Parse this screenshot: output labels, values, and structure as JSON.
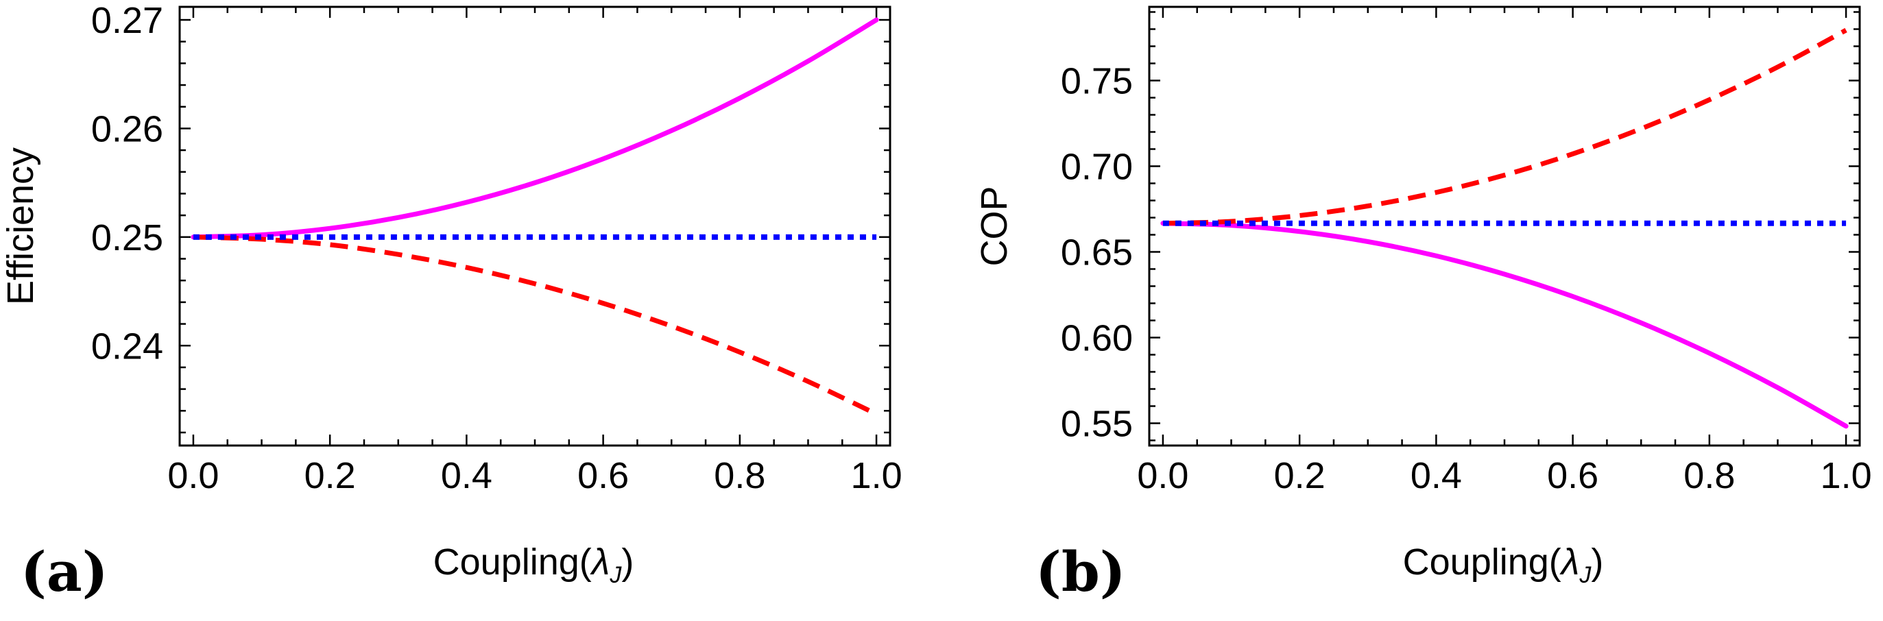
{
  "chart_data": [
    {
      "id": "a",
      "type": "line",
      "panel_label": "(a)",
      "xlabel_text": "Coupling(",
      "xlabel_symbol": "λ",
      "xlabel_subscript": "J",
      "xlabel_close": ")",
      "ylabel": "Efficiency",
      "xlim": [
        -0.02,
        1.02
      ],
      "ylim": [
        0.2308,
        0.2712
      ],
      "xticks": [
        0.0,
        0.2,
        0.4,
        0.6,
        0.8,
        1.0
      ],
      "xtick_labels": [
        "0.0",
        "0.2",
        "0.4",
        "0.6",
        "0.8",
        "1.0"
      ],
      "yticks": [
        0.24,
        0.25,
        0.26,
        0.27
      ],
      "ytick_labels": [
        "0.24",
        "0.25",
        "0.26",
        "0.27"
      ],
      "x": [
        0.0,
        0.1,
        0.2,
        0.3,
        0.4,
        0.5,
        0.6,
        0.7,
        0.8,
        0.9,
        1.0
      ],
      "series": [
        {
          "name": "solid",
          "color": "#ff00ff",
          "dash": "solid",
          "values": [
            0.25,
            0.2502,
            0.2508,
            0.2518,
            0.2532,
            0.255,
            0.2572,
            0.2598,
            0.2628,
            0.2662,
            0.27
          ]
        },
        {
          "name": "dashed",
          "color": "#ff0000",
          "dash": "dashed",
          "values": [
            0.25,
            0.2498,
            0.2493,
            0.2484,
            0.2472,
            0.2457,
            0.2439,
            0.2418,
            0.2394,
            0.2367,
            0.2337
          ]
        },
        {
          "name": "dotted",
          "color": "#0000ff",
          "dash": "dotted",
          "values": [
            0.25,
            0.25,
            0.25,
            0.25,
            0.25,
            0.25,
            0.25,
            0.25,
            0.25,
            0.25,
            0.25
          ]
        }
      ]
    },
    {
      "id": "b",
      "type": "line",
      "panel_label": "(b)",
      "xlabel_text": "Coupling(",
      "xlabel_symbol": "λ",
      "xlabel_subscript": "J",
      "xlabel_close": ")",
      "ylabel": "COP",
      "xlim": [
        -0.02,
        1.02
      ],
      "ylim": [
        0.537,
        0.793
      ],
      "xticks": [
        0.0,
        0.2,
        0.4,
        0.6,
        0.8,
        1.0
      ],
      "xtick_labels": [
        "0.0",
        "0.2",
        "0.4",
        "0.6",
        "0.8",
        "1.0"
      ],
      "yticks": [
        0.55,
        0.6,
        0.65,
        0.7,
        0.75
      ],
      "ytick_labels": [
        "0.55",
        "0.60",
        "0.65",
        "0.70",
        "0.75"
      ],
      "x": [
        0.0,
        0.1,
        0.2,
        0.3,
        0.4,
        0.5,
        0.6,
        0.7,
        0.8,
        0.9,
        1.0
      ],
      "series": [
        {
          "name": "solid",
          "color": "#ff00ff",
          "dash": "solid",
          "values": [
            0.6667,
            0.6655,
            0.6619,
            0.656,
            0.6477,
            0.637,
            0.624,
            0.6086,
            0.5909,
            0.5708,
            0.5483
          ]
        },
        {
          "name": "dashed",
          "color": "#ff0000",
          "dash": "dashed",
          "values": [
            0.6667,
            0.6678,
            0.6712,
            0.6768,
            0.6847,
            0.6948,
            0.7072,
            0.7219,
            0.7388,
            0.7579,
            0.7794
          ]
        },
        {
          "name": "dotted",
          "color": "#0000ff",
          "dash": "dotted",
          "values": [
            0.6667,
            0.6667,
            0.6667,
            0.6667,
            0.6667,
            0.6667,
            0.6667,
            0.6667,
            0.6667,
            0.6667,
            0.6667
          ]
        }
      ]
    }
  ]
}
